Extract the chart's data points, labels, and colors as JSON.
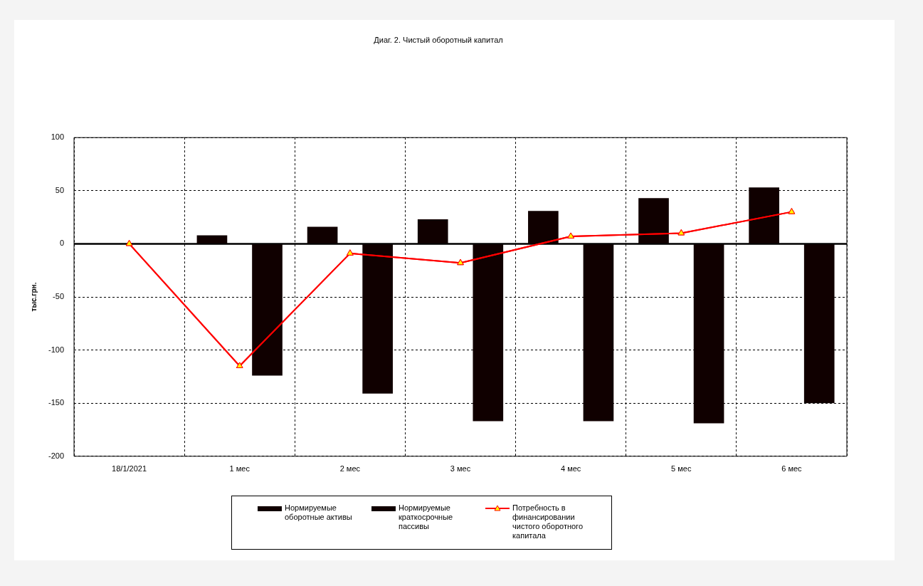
{
  "chart_data": {
    "type": "bar",
    "title": "Диаг. 2. Чистый оборотный капитал",
    "ylabel": "тыс.грн.",
    "categories": [
      "18/1/2021",
      "1 мес",
      "2 мес",
      "3 мес",
      "4 мес",
      "5 мес",
      "6 мес"
    ],
    "series": [
      {
        "name": "Нормируемые оборотные активы",
        "color": "#100000",
        "values": [
          null,
          8,
          16,
          23,
          31,
          43,
          53
        ]
      },
      {
        "name": "Нормируемые краткосрочные пассивы",
        "color": "#100000",
        "values": [
          null,
          -124,
          -141,
          -167,
          -167,
          -169,
          -150
        ]
      },
      {
        "name": "Потребность в финансировании чистого оборотного капитала",
        "type": "line",
        "color": "#ff0000",
        "marker": "triangle",
        "values": [
          0,
          -115,
          -9,
          -18,
          7,
          10,
          30
        ]
      }
    ],
    "ylim": [
      -200,
      100
    ],
    "yticks": [
      -200,
      -150,
      -100,
      -50,
      0,
      50,
      100
    ],
    "grid": true,
    "legend": "bottom",
    "line_style": "solid"
  }
}
